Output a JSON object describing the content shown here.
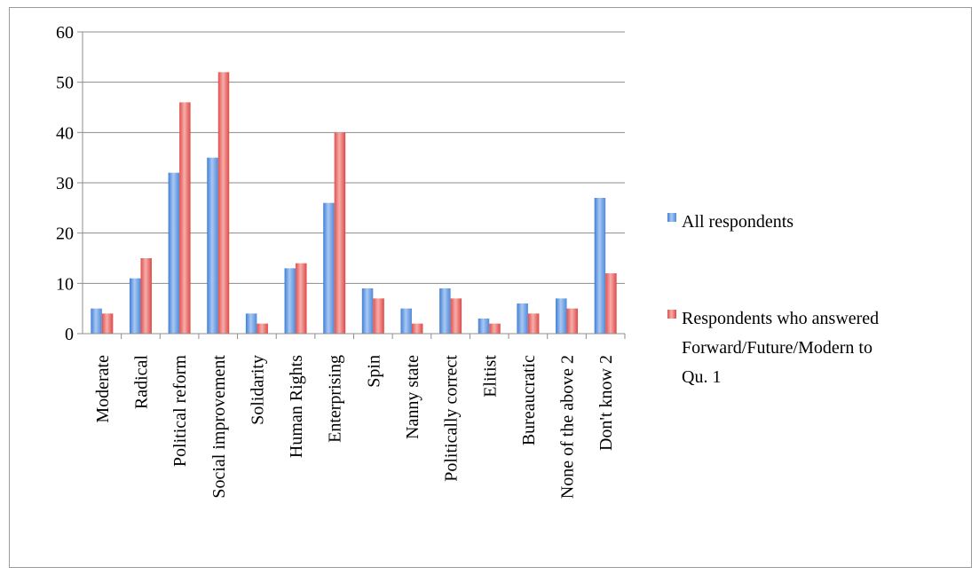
{
  "chart_data": {
    "type": "bar",
    "categories": [
      "Moderate",
      "Radical",
      "Political reform",
      "Social improvement",
      "Solidarity",
      "Human Rights",
      "Enterprising",
      "Spin",
      "Nanny state",
      "Politically correct",
      "Elitist",
      "Bureaucratic",
      "None of the above 2",
      "Don't know 2"
    ],
    "series": [
      {
        "name": "All respondents",
        "values": [
          5,
          11,
          32,
          35,
          4,
          13,
          26,
          9,
          5,
          9,
          3,
          6,
          7,
          27
        ],
        "color": "#5b93de"
      },
      {
        "name": "Respondents who answered Forward/Future/Modern to Qu. 1",
        "legend_lines": [
          "Respondents who answered",
          "Forward/Future/Modern to",
          "Qu. 1"
        ],
        "values": [
          4,
          15,
          46,
          52,
          2,
          14,
          40,
          7,
          2,
          7,
          2,
          4,
          5,
          12
        ],
        "color": "#e8605c"
      }
    ],
    "ylim": [
      0,
      60
    ],
    "yticks": [
      0,
      10,
      20,
      30,
      40,
      50,
      60
    ],
    "grid": true,
    "legend_position": "right",
    "title": "",
    "xlabel": "",
    "ylabel": ""
  }
}
